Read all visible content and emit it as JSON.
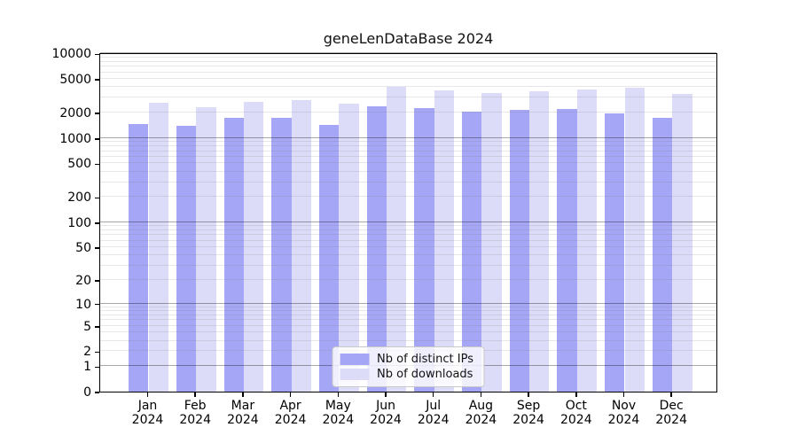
{
  "title": "geneLenDataBase 2024",
  "colors": {
    "distinct_ips": "#a6a6f6",
    "downloads": "#dcdcf8",
    "gridline_minor": "#e7e7e7",
    "gridline_major": "#aaaaaa",
    "axis": "#000000"
  },
  "legend": {
    "items": [
      {
        "label": "Nb of distinct IPs",
        "color": "#a6a6f6"
      },
      {
        "label": "Nb of downloads",
        "color": "#dcdcf8"
      }
    ]
  },
  "x_axis": {
    "months": [
      "Jan",
      "Feb",
      "Mar",
      "Apr",
      "May",
      "Jun",
      "Jul",
      "Aug",
      "Sep",
      "Oct",
      "Nov",
      "Dec"
    ],
    "year": "2024"
  },
  "y_axis": {
    "tick_labels": [
      "10000",
      "5000",
      "2000",
      "1000",
      "500",
      "200",
      "100",
      "50",
      "20",
      "10",
      "5",
      "2",
      "1",
      "0"
    ]
  },
  "chart_data": {
    "type": "bar",
    "title": "geneLenDataBase 2024",
    "categories": [
      "Jan 2024",
      "Feb 2024",
      "Mar 2024",
      "Apr 2024",
      "May 2024",
      "Jun 2024",
      "Jul 2024",
      "Aug 2024",
      "Sep 2024",
      "Oct 2024",
      "Nov 2024",
      "Dec 2024"
    ],
    "series": [
      {
        "name": "Nb of distinct IPs",
        "color": "#a6a6f6",
        "values": [
          1450,
          1410,
          1750,
          1720,
          1430,
          2350,
          2260,
          2060,
          2160,
          2220,
          1970,
          1750
        ]
      },
      {
        "name": "Nb of downloads",
        "color": "#dcdcf8",
        "values": [
          2610,
          2330,
          2670,
          2790,
          2530,
          4080,
          3640,
          3390,
          3610,
          3730,
          3920,
          3300
        ]
      }
    ],
    "yscale": "log1p",
    "ylim": [
      0,
      10000
    ],
    "yticks": [
      0,
      1,
      2,
      5,
      10,
      20,
      50,
      100,
      200,
      500,
      1000,
      2000,
      5000,
      10000
    ],
    "grid": "horizontal log minor gridlines; darker lines at powers of 10; gridlines drawn over bars",
    "legend_position": "lower center inside plot"
  }
}
